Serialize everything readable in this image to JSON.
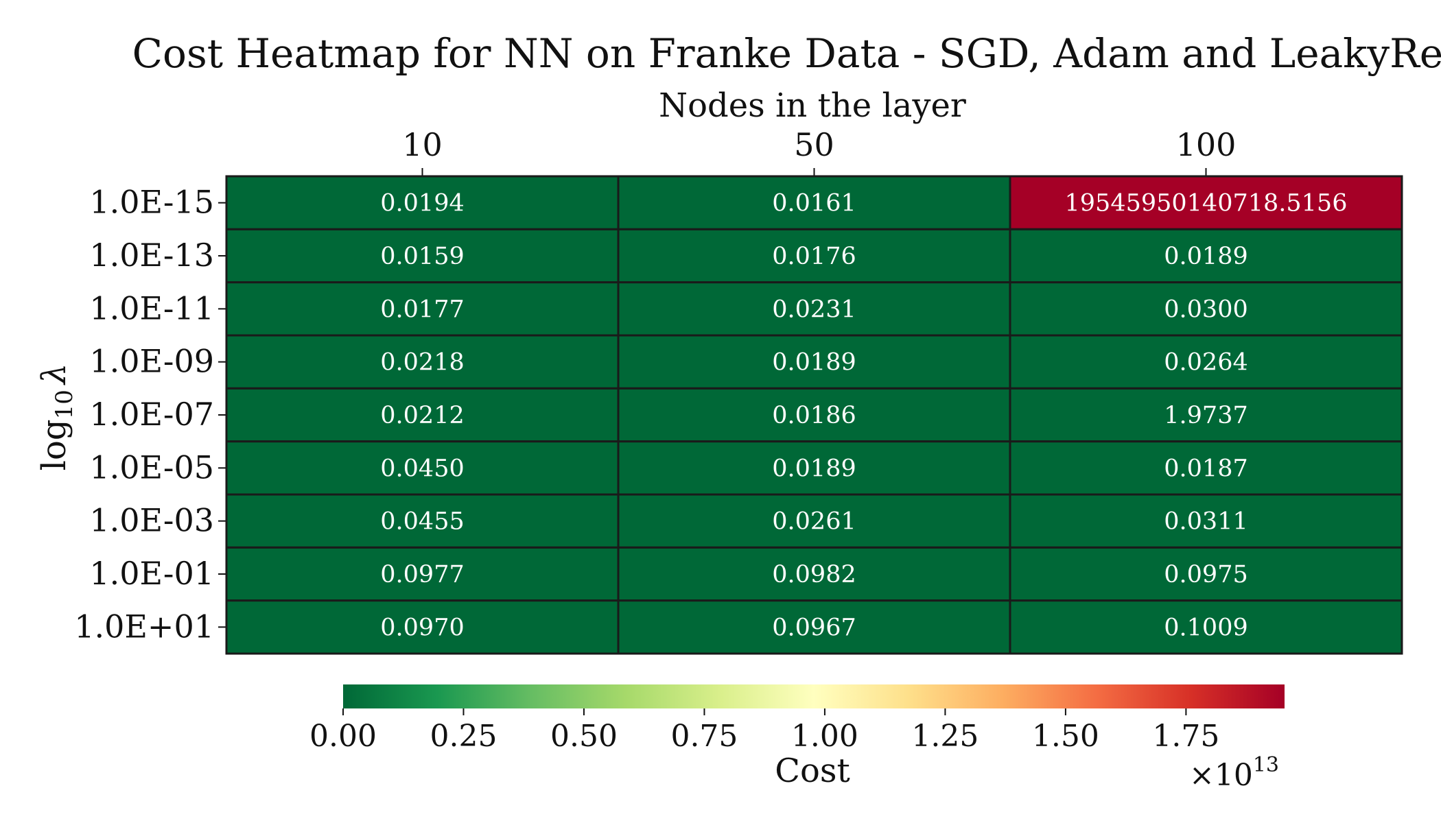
{
  "chart_data": {
    "type": "heatmap",
    "title": "Cost Heatmap for NN on Franke Data - SGD, Adam and LeakyReLU",
    "xlabel": "Nodes in the layer",
    "ylabel_base": "log",
    "ylabel_sub": "10",
    "ylabel_symbol": "λ",
    "x_categories": [
      "10",
      "50",
      "100"
    ],
    "y_categories": [
      "1.0E-15",
      "1.0E-13",
      "1.0E-11",
      "1.0E-09",
      "1.0E-07",
      "1.0E-05",
      "1.0E-03",
      "1.0E-01",
      "1.0E+01"
    ],
    "values": [
      [
        0.0194,
        0.0161,
        19545950140718.516
      ],
      [
        0.0159,
        0.0176,
        0.0189
      ],
      [
        0.0177,
        0.0231,
        0.03
      ],
      [
        0.0218,
        0.0189,
        0.0264
      ],
      [
        0.0212,
        0.0186,
        1.9737
      ],
      [
        0.045,
        0.0189,
        0.0187
      ],
      [
        0.0455,
        0.0261,
        0.0311
      ],
      [
        0.0977,
        0.0982,
        0.0975
      ],
      [
        0.097,
        0.0967,
        0.1009
      ]
    ],
    "cell_labels": [
      [
        "0.0194",
        "0.0161",
        "19545950140718.5156"
      ],
      [
        "0.0159",
        "0.0176",
        "0.0189"
      ],
      [
        "0.0177",
        "0.0231",
        "0.0300"
      ],
      [
        "0.0218",
        "0.0189",
        "0.0264"
      ],
      [
        "0.0212",
        "0.0186",
        "1.9737"
      ],
      [
        "0.0450",
        "0.0189",
        "0.0187"
      ],
      [
        "0.0455",
        "0.0261",
        "0.0311"
      ],
      [
        "0.0977",
        "0.0982",
        "0.0975"
      ],
      [
        "0.0970",
        "0.0967",
        "0.1009"
      ]
    ],
    "colorbar": {
      "label": "Cost",
      "colormap": "RdYlGn_r",
      "range": [
        0,
        19545950140718.516
      ],
      "tick_values": [
        0.0,
        0.25,
        0.5,
        0.75,
        1.0,
        1.25,
        1.5,
        1.75
      ],
      "tick_labels": [
        "0.00",
        "0.25",
        "0.50",
        "0.75",
        "1.00",
        "1.25",
        "1.50",
        "1.75"
      ],
      "multiplier_base": "×10",
      "multiplier_exp": "13",
      "multiplier": 10000000000000
    },
    "colors": {
      "low": "#006837",
      "high": "#a50026",
      "cell_border": "#1a1a1a",
      "cell_text": "#ffffff"
    }
  }
}
